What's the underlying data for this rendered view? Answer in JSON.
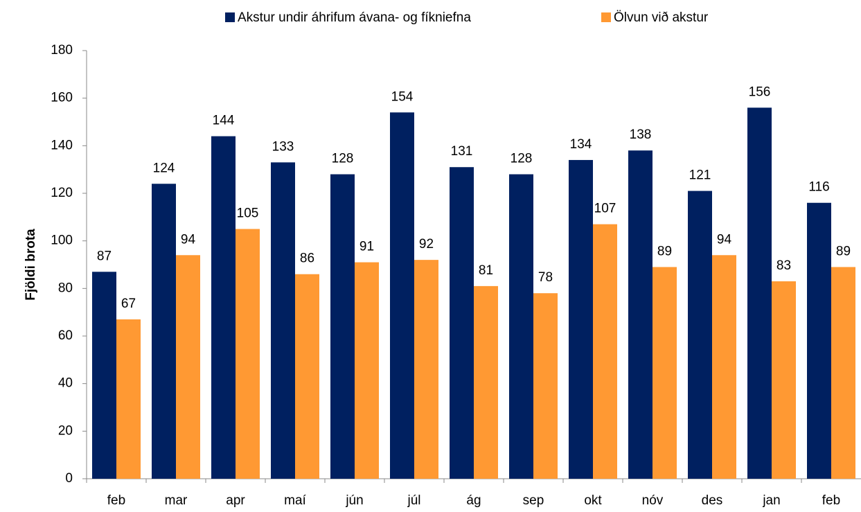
{
  "chart_data": {
    "type": "bar",
    "y_label": "Fjöldi brota",
    "categories": [
      "feb",
      "mar",
      "apr",
      "maí",
      "jún",
      "júl",
      "ág",
      "sep",
      "okt",
      "nóv",
      "des",
      "jan",
      "feb"
    ],
    "series": [
      {
        "name": "Akstur undir áhrifum ávana- og fíkniefna",
        "color": "#002060",
        "values": [
          87,
          124,
          144,
          133,
          128,
          154,
          131,
          128,
          134,
          138,
          121,
          156,
          116
        ]
      },
      {
        "name": "Ölvun við akstur",
        "color": "#ff9933",
        "values": [
          67,
          94,
          105,
          86,
          91,
          92,
          81,
          78,
          107,
          89,
          94,
          83,
          89
        ]
      }
    ],
    "ylim": [
      0,
      180
    ],
    "yticks": [
      0,
      20,
      40,
      60,
      80,
      100,
      120,
      140,
      160,
      180
    ],
    "legend": "top"
  }
}
